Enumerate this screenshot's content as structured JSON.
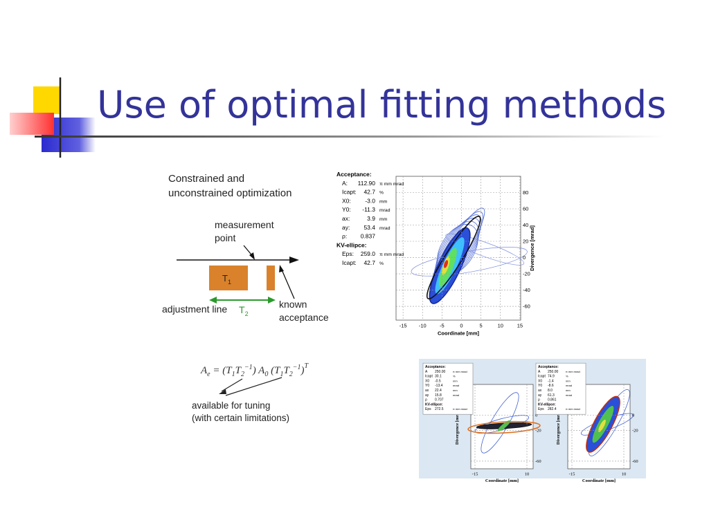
{
  "title": "Use of optimal fitting methods",
  "diagram": {
    "heading": [
      "Constrained and",
      "unconstrained optimization"
    ],
    "measurement_point": [
      "measurement",
      "point"
    ],
    "t1": [
      "T",
      "1"
    ],
    "adjustment_line": "adjustment line",
    "t2": [
      "T",
      "2"
    ],
    "known_acceptance": [
      "known",
      "acceptance"
    ]
  },
  "formula": [
    "A",
    "e",
    " = (",
    "T",
    "1",
    "T",
    "2",
    "−1",
    ") ",
    "A",
    "0",
    " (",
    "T",
    "1",
    "T",
    "2",
    "−1",
    ")",
    "T"
  ],
  "tuning_note": [
    "available for tuning",
    "(with certain limitations)"
  ],
  "main_plot": {
    "panel_title": "Acceptance:",
    "rows": [
      [
        "A:",
        "112.90",
        "π mm mrad"
      ],
      [
        "Icapt:",
        "42.7",
        "%"
      ],
      [
        "X0:",
        "-3.0",
        "mm"
      ],
      [
        "Y0:",
        "-11.3",
        "mrad"
      ],
      [
        "ax:",
        "3.9",
        "mm"
      ],
      [
        "ay:",
        "53.4",
        "mrad"
      ],
      [
        "ρ:",
        "0.837",
        ""
      ]
    ],
    "kv_title": "KV-ellipce:",
    "kv_rows": [
      [
        "Eps:",
        "259.0",
        "π mm mrad"
      ],
      [
        "Icapt:",
        "42.7",
        "%"
      ]
    ],
    "xlabel": "Coordinate [mm]",
    "ylabel": "Divergence [mrad]",
    "xticks": [
      -15,
      -10,
      -5,
      0,
      5,
      10,
      15
    ],
    "yticks": [
      80,
      60,
      40,
      20,
      0,
      -20,
      -40,
      -60
    ]
  },
  "small_plots": [
    {
      "panel_title": "Acceptance:",
      "rows": [
        [
          "A",
          "250.00",
          "π mm mrad"
        ],
        [
          "Icapt",
          "30.1",
          "%"
        ],
        [
          "X0",
          "-0.5",
          "mm"
        ],
        [
          "Y0",
          "-13.4",
          "mrad"
        ],
        [
          "ax",
          "22.4",
          "mm"
        ],
        [
          "ay",
          "15.8",
          "mrad"
        ],
        [
          "ρ",
          "0.707",
          ""
        ]
      ],
      "kv_title": "KV-ellipce:",
      "kv_rows": [
        [
          "Eps",
          "272.5",
          "π mm mrad"
        ]
      ],
      "xlabel": "Coordinate [mm]",
      "ylabel": "Divergence [mrad]",
      "xticks": [
        -15,
        10
      ],
      "yticks": [
        0,
        -20,
        -60
      ]
    },
    {
      "panel_title": "Acceptance:",
      "rows": [
        [
          "A",
          "250.00",
          "π mm mrad"
        ],
        [
          "Icapt",
          "74.9",
          "%"
        ],
        [
          "X0",
          "-1.4",
          "mm"
        ],
        [
          "Y0",
          "-8.6",
          "mrad"
        ],
        [
          "ax",
          "8.0",
          "mm"
        ],
        [
          "ay",
          "61.3",
          "mrad"
        ],
        [
          "ρ",
          "0.861",
          ""
        ]
      ],
      "kv_title": "KV-ellipce:",
      "kv_rows": [
        [
          "Eps",
          "282.4",
          "π mm mrad"
        ]
      ],
      "xlabel": "Coordinate [mm]",
      "ylabel": "Divergence [mrad]",
      "xticks": [
        -15,
        10
      ],
      "yticks": [
        0,
        -20,
        -60
      ]
    }
  ]
}
